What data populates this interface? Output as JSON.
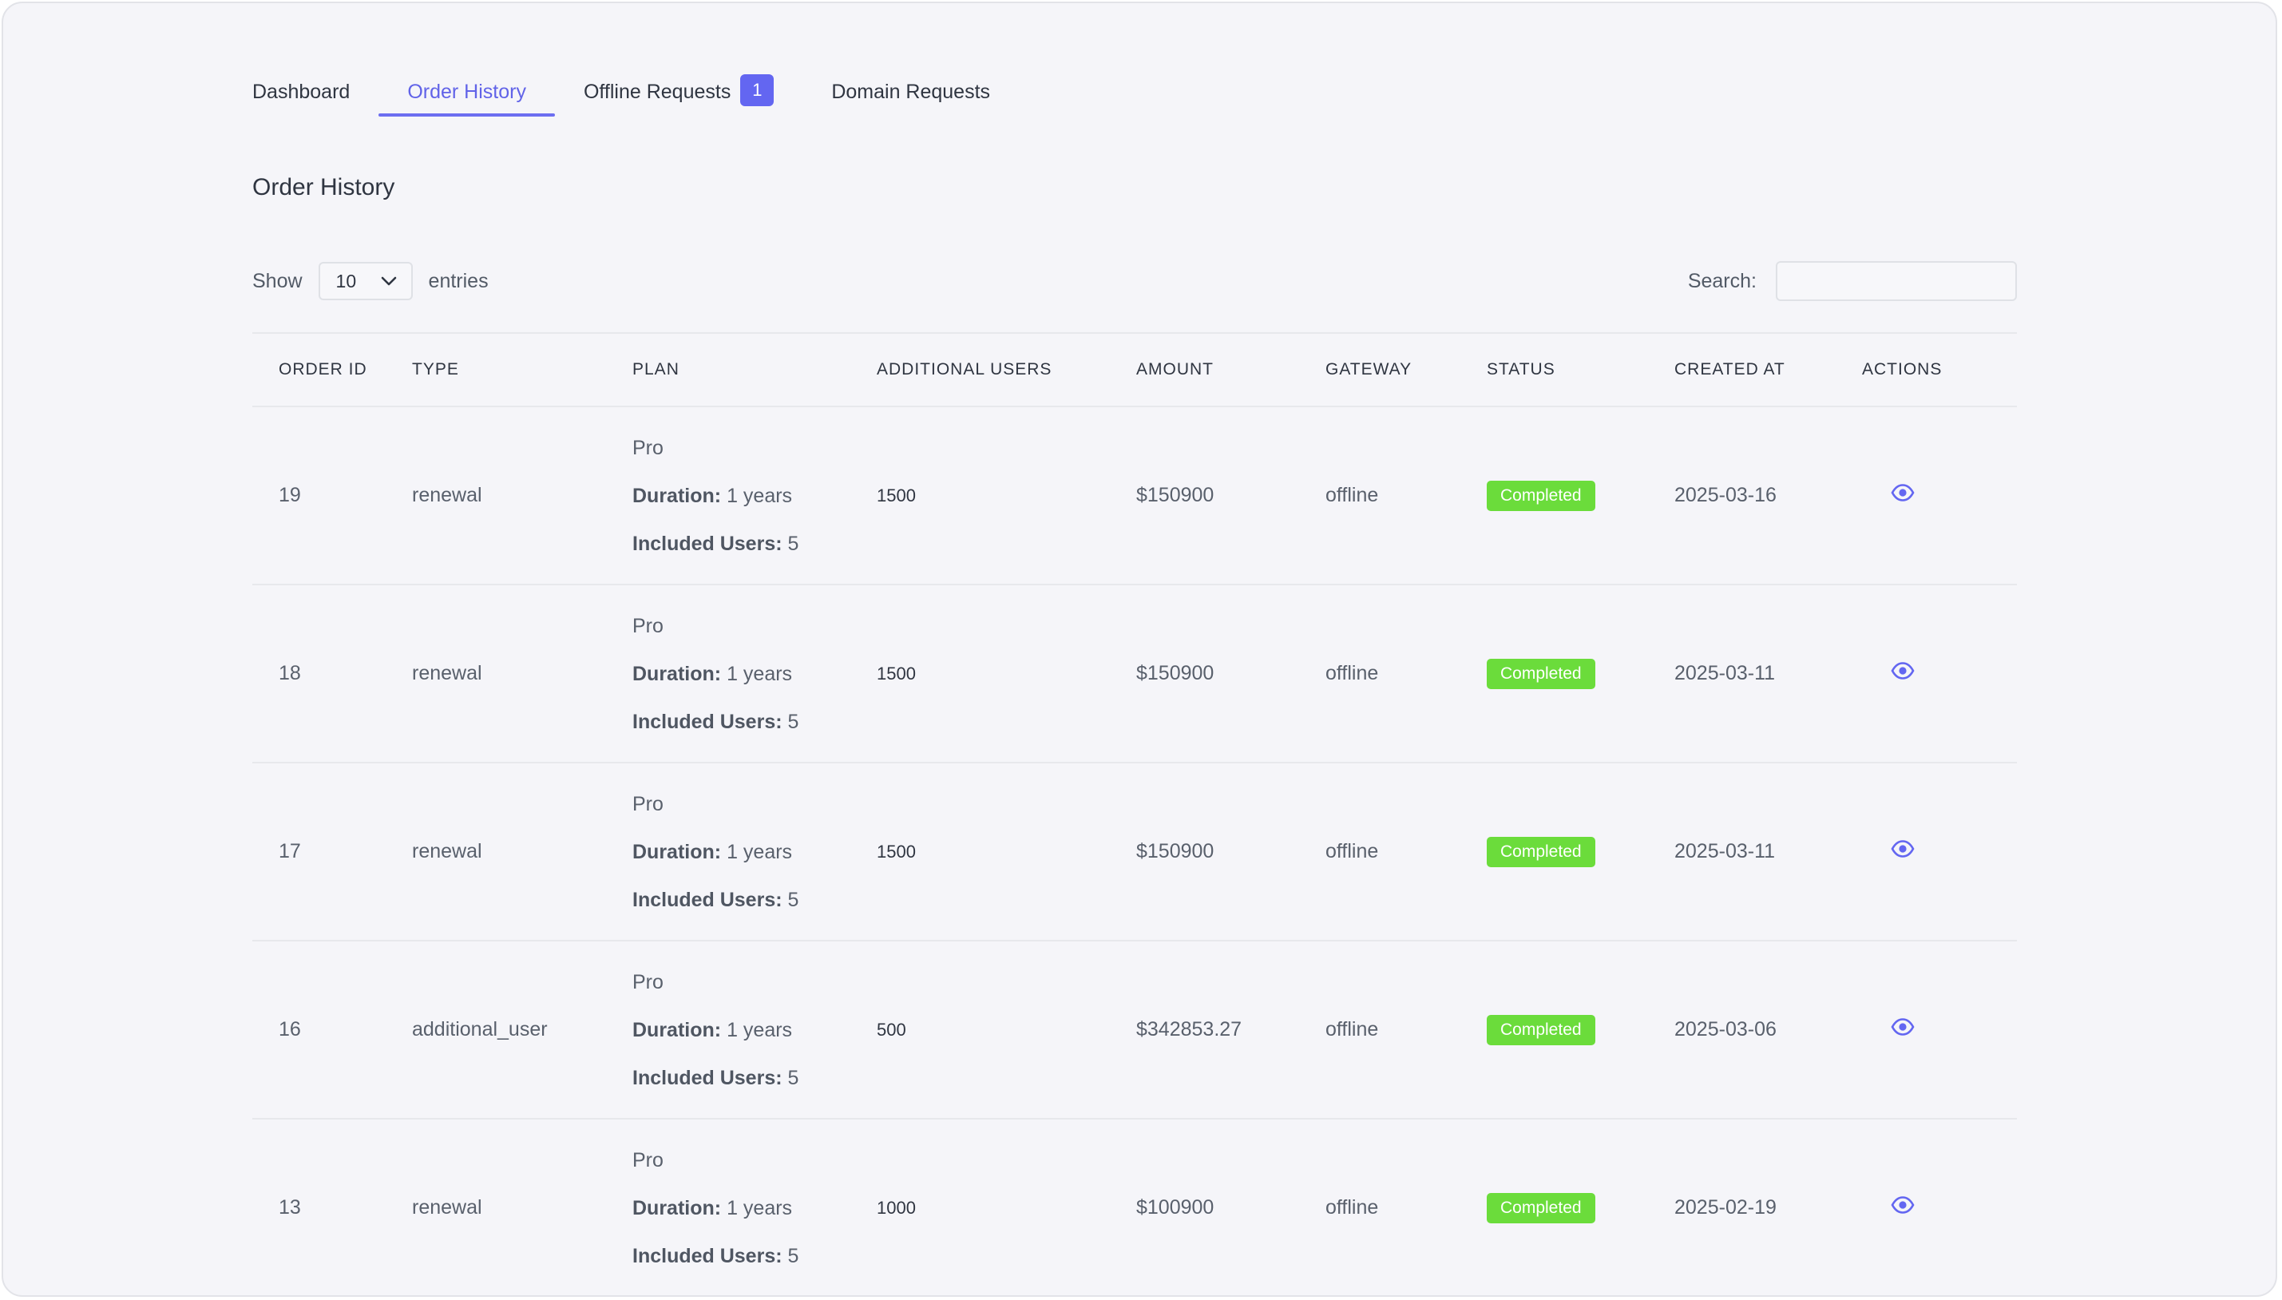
{
  "tabs": [
    {
      "label": "Dashboard"
    },
    {
      "label": "Order History"
    },
    {
      "label": "Offline Requests",
      "badge": "1"
    },
    {
      "label": "Domain Requests"
    }
  ],
  "card": {
    "title": "Order History"
  },
  "controls": {
    "show_label": "Show",
    "entries_value": "10",
    "entries_label": "entries",
    "search_label": "Search:",
    "search_value": ""
  },
  "table": {
    "headers": [
      "ORDER ID",
      "TYPE",
      "PLAN",
      "ADDITIONAL USERS",
      "AMOUNT",
      "GATEWAY",
      "STATUS",
      "CREATED AT",
      "ACTIONS"
    ],
    "plan_labels": {
      "duration": "Duration:",
      "included": "Included Users:"
    },
    "rows": [
      {
        "id": "19",
        "type": "renewal",
        "plan": "Pro",
        "duration": "1 years",
        "included": "5",
        "additional": "1500",
        "amount": "$150900",
        "gateway": "offline",
        "status": "Completed",
        "created": "2025-03-16"
      },
      {
        "id": "18",
        "type": "renewal",
        "plan": "Pro",
        "duration": "1 years",
        "included": "5",
        "additional": "1500",
        "amount": "$150900",
        "gateway": "offline",
        "status": "Completed",
        "created": "2025-03-11"
      },
      {
        "id": "17",
        "type": "renewal",
        "plan": "Pro",
        "duration": "1 years",
        "included": "5",
        "additional": "1500",
        "amount": "$150900",
        "gateway": "offline",
        "status": "Completed",
        "created": "2025-03-11"
      },
      {
        "id": "16",
        "type": "additional_user",
        "plan": "Pro",
        "duration": "1 years",
        "included": "5",
        "additional": "500",
        "amount": "$342853.27",
        "gateway": "offline",
        "status": "Completed",
        "created": "2025-03-06"
      },
      {
        "id": "13",
        "type": "renewal",
        "plan": "Pro",
        "duration": "1 years",
        "included": "5",
        "additional": "1000",
        "amount": "$100900",
        "gateway": "offline",
        "status": "Completed",
        "created": "2025-02-19"
      }
    ]
  },
  "colors": {
    "accent": "#6366f1",
    "status_completed": "#6bdc3b"
  },
  "icons": {
    "action": "eye-icon",
    "select": "chevron-down-icon"
  }
}
